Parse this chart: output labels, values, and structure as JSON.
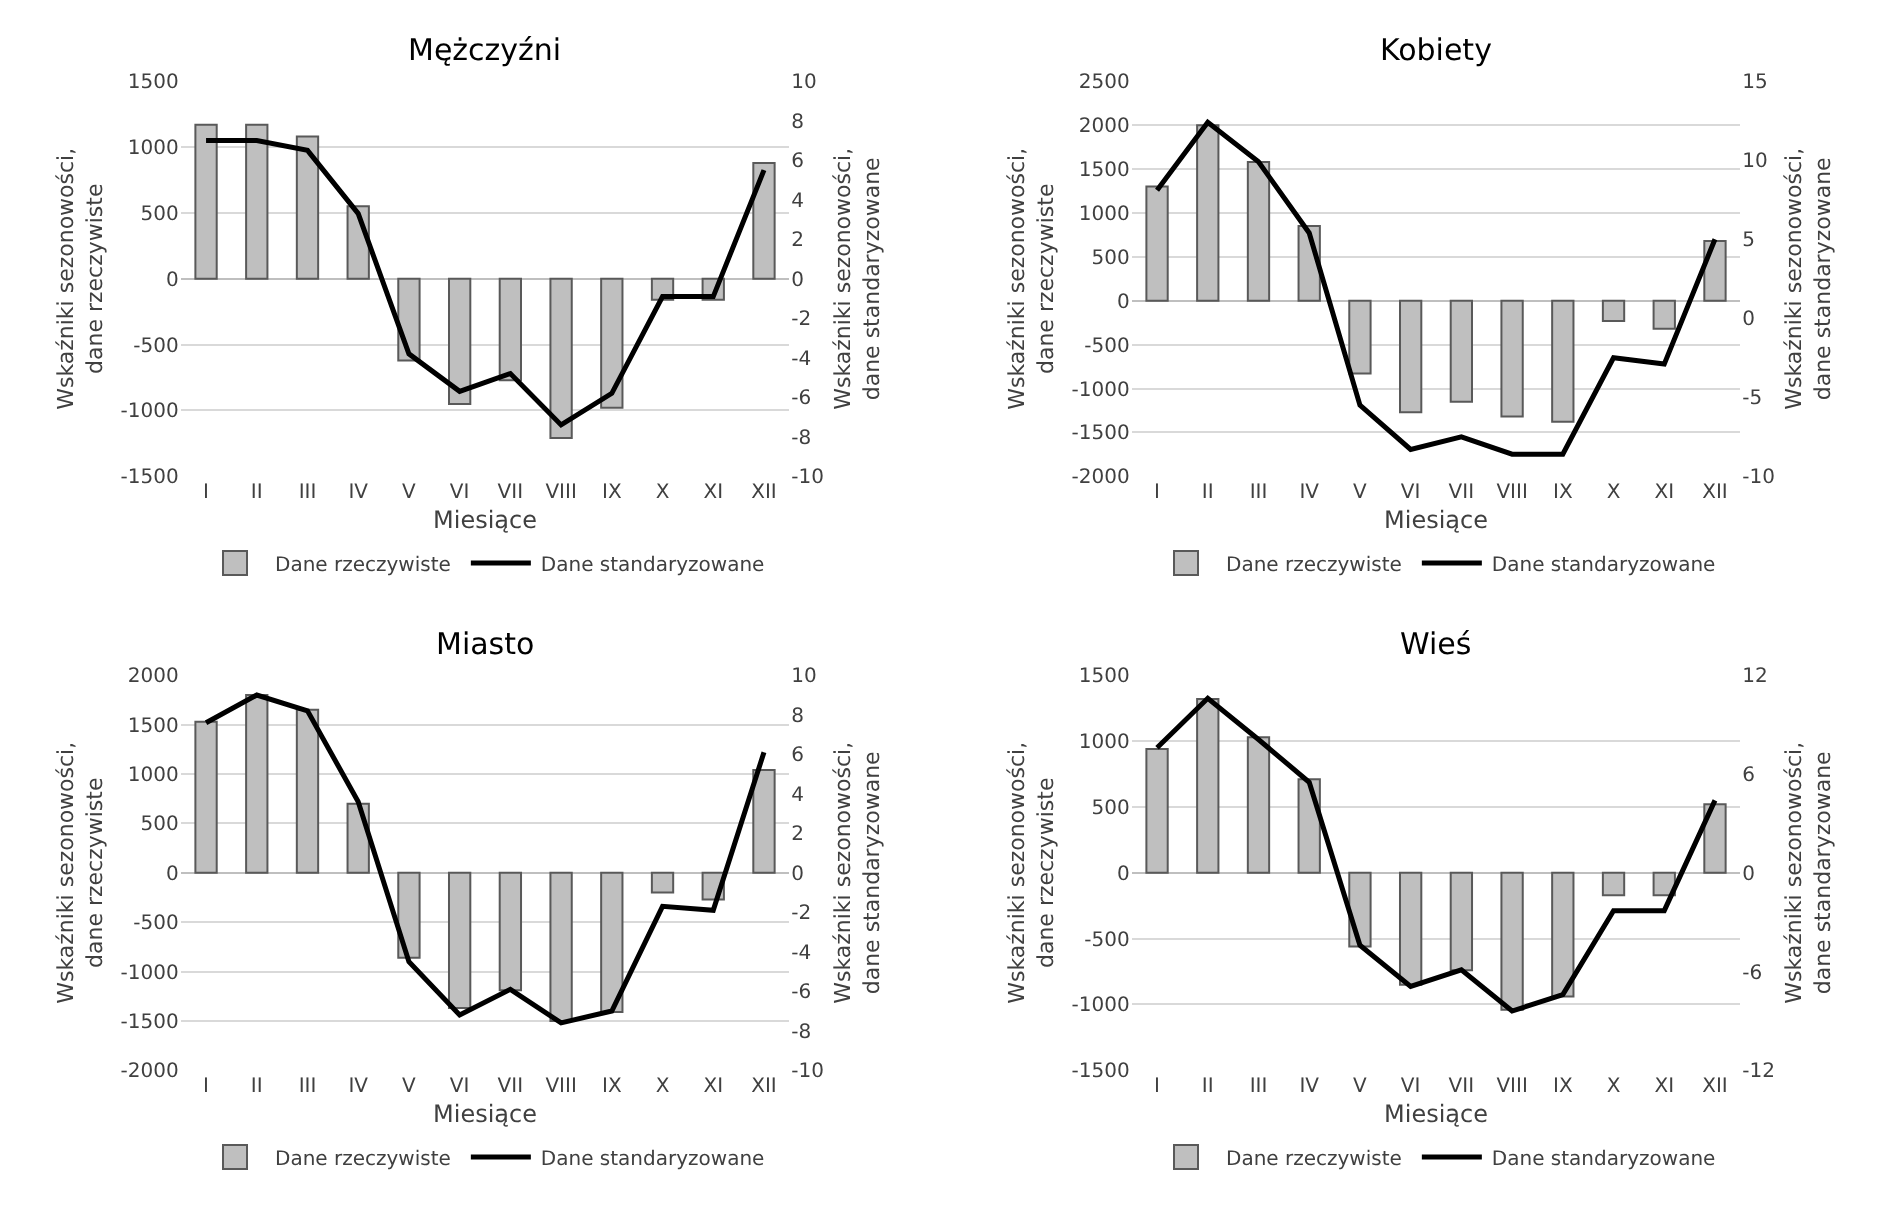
{
  "chart_data": [
    {
      "type": "bar",
      "title": "Mężczyźni",
      "xlabel": "Miesiące",
      "ylabel": "Wskaźniki sezonowości, dane rzeczywiste",
      "y2label": "Wskaźniki sezonowości, dane standaryzowane",
      "categories": [
        "I",
        "II",
        "III",
        "IV",
        "V",
        "VI",
        "VII",
        "VIII",
        "IX",
        "X",
        "XI",
        "XII"
      ],
      "series": [
        {
          "name": "Dane rzeczywiste",
          "color": "#bfbfbf",
          "values": [
            1170,
            1170,
            1080,
            550,
            -620,
            -950,
            -770,
            -1210,
            -980,
            -160,
            -160,
            880
          ]
        },
        {
          "name": "Dane standaryzowane",
          "type": "line",
          "axis": "y2",
          "color": "#000000",
          "values": [
            7,
            7,
            6.5,
            3.3,
            -3.8,
            -5.7,
            -4.8,
            -7.4,
            -5.8,
            -0.9,
            -0.9,
            5.5
          ]
        }
      ],
      "ylim": [
        -1500,
        1500
      ],
      "yticks": [
        -1500,
        -1000,
        -500,
        0,
        500,
        1000,
        1500
      ],
      "y2lim": [
        -10,
        10
      ],
      "y2ticks": [
        -10,
        -8,
        -6,
        -4,
        -2,
        0,
        2,
        4,
        6,
        8,
        10
      ],
      "grid": "y",
      "legend": "bottom"
    },
    {
      "type": "bar",
      "title": "Kobiety",
      "xlabel": "Miesiące",
      "ylabel": "Wskaźniki sezonowości, dane rzeczywiste",
      "y2label": "Wskaźniki sezonowości, dane standaryzowane",
      "categories": [
        "I",
        "II",
        "III",
        "IV",
        "V",
        "VI",
        "VII",
        "VIII",
        "IX",
        "X",
        "XI",
        "XII"
      ],
      "series": [
        {
          "name": "Dane rzeczywiste",
          "color": "#bfbfbf",
          "values": [
            1300,
            2000,
            1580,
            850,
            -830,
            -1270,
            -1150,
            -1320,
            -1380,
            -230,
            -320,
            680
          ]
        },
        {
          "name": "Dane standaryzowane",
          "type": "line",
          "axis": "y2",
          "color": "#000000",
          "values": [
            8.1,
            12.4,
            9.9,
            5.4,
            -5.5,
            -8.3,
            -7.5,
            -8.6,
            -8.6,
            -2.5,
            -2.9,
            5
          ]
        }
      ],
      "ylim": [
        -2000,
        2500
      ],
      "yticks": [
        -2000,
        -1500,
        -1000,
        -500,
        0,
        500,
        1000,
        1500,
        2000,
        2500
      ],
      "y2lim": [
        -10,
        15
      ],
      "y2ticks": [
        -10,
        -5,
        0,
        5,
        10,
        15
      ],
      "grid": "y",
      "legend": "bottom"
    },
    {
      "type": "bar",
      "title": "Miasto",
      "xlabel": "Miesiące",
      "ylabel": "Wskaźniki sezonowości, dane rzeczywiste",
      "y2label": "Wskaźniki sezonowości, dane standaryzowane",
      "categories": [
        "I",
        "II",
        "III",
        "IV",
        "V",
        "VI",
        "VII",
        "VIII",
        "IX",
        "X",
        "XI",
        "XII"
      ],
      "series": [
        {
          "name": "Dane rzeczywiste",
          "color": "#bfbfbf",
          "values": [
            1530,
            1800,
            1650,
            700,
            -860,
            -1370,
            -1190,
            -1500,
            -1410,
            -200,
            -270,
            1040
          ]
        },
        {
          "name": "Dane standaryzowane",
          "type": "line",
          "axis": "y2",
          "color": "#000000",
          "values": [
            7.6,
            9,
            8.2,
            3.6,
            -4.5,
            -7.2,
            -5.9,
            -7.6,
            -7,
            -1.7,
            -1.9,
            6.1
          ]
        }
      ],
      "ylim": [
        -2000,
        2000
      ],
      "yticks": [
        -2000,
        -1500,
        -1000,
        -500,
        0,
        500,
        1000,
        1500,
        2000
      ],
      "y2lim": [
        -10,
        10
      ],
      "y2ticks": [
        -10,
        -8,
        -6,
        -4,
        -2,
        0,
        2,
        4,
        6,
        8,
        10
      ],
      "grid": "y",
      "legend": "bottom"
    },
    {
      "type": "bar",
      "title": "Wieś",
      "xlabel": "Miesiące",
      "ylabel": "Wskaźniki sezonowości, dane rzeczywiste",
      "y2label": "Wskaźniki sezonowości, dane standaryzowane",
      "categories": [
        "I",
        "II",
        "III",
        "IV",
        "V",
        "VI",
        "VII",
        "VIII",
        "IX",
        "X",
        "XI",
        "XII"
      ],
      "series": [
        {
          "name": "Dane rzeczywiste",
          "color": "#bfbfbf",
          "values": [
            940,
            1320,
            1030,
            710,
            -560,
            -850,
            -740,
            -1040,
            -940,
            -170,
            -170,
            520
          ]
        },
        {
          "name": "Dane standaryzowane",
          "type": "line",
          "axis": "y2",
          "color": "#000000",
          "values": [
            7.6,
            10.6,
            8.1,
            5.5,
            -4.4,
            -6.9,
            -5.9,
            -8.4,
            -7.4,
            -2.3,
            -2.3,
            4.4
          ]
        }
      ],
      "ylim": [
        -1500,
        1500
      ],
      "yticks": [
        -1500,
        -1000,
        -500,
        0,
        500,
        1000,
        1500
      ],
      "y2lim": [
        -12,
        12
      ],
      "y2ticks": [
        -12,
        -6,
        0,
        6,
        12
      ],
      "grid": "y",
      "legend": "bottom"
    }
  ]
}
